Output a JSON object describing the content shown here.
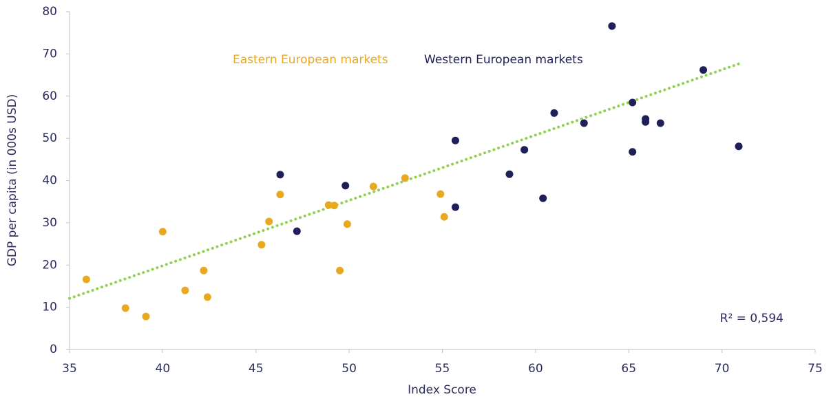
{
  "chart_data": {
    "type": "scatter",
    "xlabel": "Index Score",
    "ylabel": "GDP per capita (in 000s USD)",
    "xlim": [
      35,
      75
    ],
    "xticks": [
      35,
      40,
      45,
      50,
      55,
      60,
      65,
      70,
      75
    ],
    "ylim": [
      0,
      80
    ],
    "yticks": [
      0,
      10,
      20,
      30,
      40,
      50,
      60,
      70,
      80
    ],
    "grid": false,
    "series": [
      {
        "name": "Eastern European markets",
        "color": "#e8a820",
        "x": [
          35.9,
          38.0,
          39.1,
          40.0,
          41.2,
          42.2,
          42.4,
          45.3,
          45.7,
          46.3,
          48.9,
          49.2,
          49.5,
          49.9,
          51.3,
          53.0,
          54.9,
          55.1
        ],
        "values": [
          16.6,
          9.8,
          7.8,
          27.9,
          14.0,
          18.7,
          12.4,
          24.8,
          30.3,
          36.7,
          34.2,
          34.1,
          18.7,
          29.7,
          38.6,
          40.6,
          36.8,
          31.4
        ]
      },
      {
        "name": "Western European markets",
        "color": "#1f1f5a",
        "x": [
          46.3,
          47.2,
          49.8,
          55.7,
          55.7,
          58.6,
          59.4,
          60.4,
          61.0,
          62.6,
          64.1,
          65.2,
          65.2,
          65.9,
          65.9,
          66.7,
          69.0,
          70.9
        ],
        "values": [
          41.4,
          28.0,
          38.8,
          49.5,
          33.7,
          41.5,
          47.3,
          35.8,
          56.0,
          53.6,
          76.6,
          58.5,
          46.8,
          54.6,
          53.9,
          53.6,
          66.2,
          48.1
        ]
      }
    ],
    "trendline": {
      "color": "#8fd14f",
      "x": [
        35,
        71
      ],
      "y": [
        12.1,
        67.8
      ]
    },
    "annotation": "R² = 0,594"
  }
}
